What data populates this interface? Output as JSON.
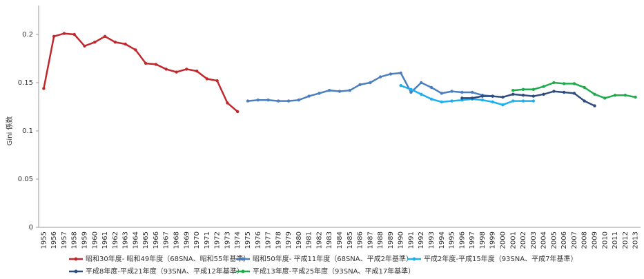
{
  "chart_data": {
    "type": "line",
    "y_label": "Gini 係数",
    "categories": [
      "1955",
      "1956",
      "1957",
      "1958",
      "1959",
      "1960",
      "1961",
      "1962",
      "1963",
      "1964",
      "1965",
      "1966",
      "1967",
      "1968",
      "1969",
      "1970",
      "1971",
      "1972",
      "1973",
      "1974",
      "1975",
      "1976",
      "1977",
      "1978",
      "1979",
      "1980",
      "1981",
      "1982",
      "1983",
      "1984",
      "1985",
      "1986",
      "1987",
      "1988",
      "1989",
      "1990",
      "1991",
      "1992",
      "1993",
      "1994",
      "1995",
      "1996",
      "1997",
      "1998",
      "1999",
      "2000",
      "2001",
      "2002",
      "2003",
      "2004",
      "2005",
      "2006",
      "2007",
      "2008",
      "2009",
      "2010",
      "2011",
      "2012",
      "2013"
    ],
    "ylim": [
      0,
      0.23
    ],
    "yticks": [
      0,
      0.05,
      0.1,
      0.15,
      0.2
    ],
    "grid": false,
    "series": [
      {
        "name": "昭和30年度- 昭和49年度（68SNA、昭和55年基準）",
        "color": "#c0282d",
        "values": [
          0.144,
          0.198,
          0.201,
          0.2,
          0.188,
          0.192,
          0.198,
          0.192,
          0.19,
          0.184,
          0.17,
          0.169,
          0.164,
          0.161,
          0.164,
          0.162,
          0.154,
          0.152,
          0.129,
          0.12,
          null,
          null,
          null,
          null,
          null,
          null,
          null,
          null,
          null,
          null,
          null,
          null,
          null,
          null,
          null,
          null,
          null,
          null,
          null,
          null,
          null,
          null,
          null,
          null,
          null,
          null,
          null,
          null,
          null,
          null,
          null,
          null,
          null,
          null,
          null,
          null,
          null,
          null,
          null
        ]
      },
      {
        "name": "昭和50年度- 平成11年度（68SNA、平成2年基準）",
        "color": "#4a7ebf",
        "values": [
          null,
          null,
          null,
          null,
          null,
          null,
          null,
          null,
          null,
          null,
          null,
          null,
          null,
          null,
          null,
          null,
          null,
          null,
          null,
          null,
          0.131,
          0.132,
          0.132,
          0.131,
          0.131,
          0.132,
          0.136,
          0.139,
          0.142,
          0.141,
          0.142,
          0.148,
          0.15,
          0.156,
          0.159,
          0.16,
          0.14,
          0.15,
          0.145,
          0.139,
          0.141,
          0.14,
          0.14,
          0.137,
          0.136,
          null,
          null,
          null,
          null,
          null,
          null,
          null,
          null,
          null,
          null,
          null,
          null,
          null,
          null
        ]
      },
      {
        "name": "平成2年度-平成15年度（93SNA、平成7年基準）",
        "color": "#1ab0ef",
        "values": [
          null,
          null,
          null,
          null,
          null,
          null,
          null,
          null,
          null,
          null,
          null,
          null,
          null,
          null,
          null,
          null,
          null,
          null,
          null,
          null,
          null,
          null,
          null,
          null,
          null,
          null,
          null,
          null,
          null,
          null,
          null,
          null,
          null,
          null,
          null,
          0.147,
          0.143,
          0.138,
          0.133,
          0.13,
          0.131,
          0.132,
          0.133,
          0.132,
          0.13,
          0.127,
          0.131,
          0.131,
          0.131,
          null,
          null,
          null,
          null,
          null,
          null,
          null,
          null,
          null,
          null
        ]
      },
      {
        "name": "平成8年度-平成21年度（93SNA、平成12年基準）",
        "color": "#2f4b7c",
        "values": [
          null,
          null,
          null,
          null,
          null,
          null,
          null,
          null,
          null,
          null,
          null,
          null,
          null,
          null,
          null,
          null,
          null,
          null,
          null,
          null,
          null,
          null,
          null,
          null,
          null,
          null,
          null,
          null,
          null,
          null,
          null,
          null,
          null,
          null,
          null,
          null,
          null,
          null,
          null,
          null,
          null,
          0.134,
          0.134,
          0.136,
          0.136,
          0.135,
          0.138,
          0.137,
          0.136,
          0.138,
          0.141,
          0.14,
          0.139,
          0.131,
          0.126,
          null,
          null,
          null,
          null
        ]
      },
      {
        "name": "平成13年度-平成25年度（93SNA、平成17年基準）",
        "color": "#1eab4b",
        "values": [
          null,
          null,
          null,
          null,
          null,
          null,
          null,
          null,
          null,
          null,
          null,
          null,
          null,
          null,
          null,
          null,
          null,
          null,
          null,
          null,
          null,
          null,
          null,
          null,
          null,
          null,
          null,
          null,
          null,
          null,
          null,
          null,
          null,
          null,
          null,
          null,
          null,
          null,
          null,
          null,
          null,
          null,
          null,
          null,
          null,
          null,
          0.142,
          0.143,
          0.143,
          0.146,
          0.15,
          0.149,
          0.149,
          0.145,
          0.138,
          0.134,
          0.137,
          0.137,
          0.135
        ]
      }
    ]
  }
}
